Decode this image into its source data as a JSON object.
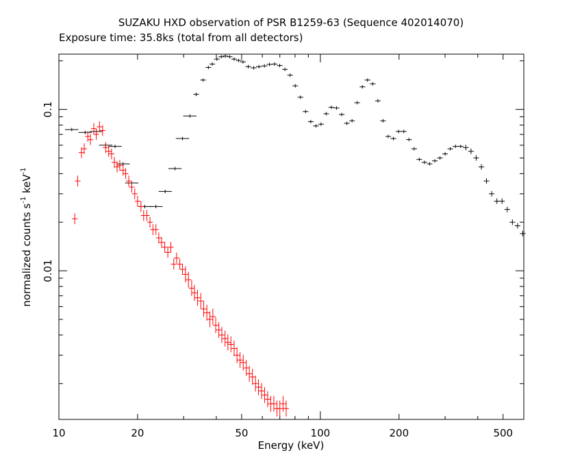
{
  "chart_data": {
    "type": "scatter",
    "title": "SUZAKU HXD observation of PSR B1259-63 (Sequence 402014070)",
    "subtitle": "Exposure time: 35.8ks (total from all detectors)",
    "xlabel": "Energy (keV)",
    "ylabel_main": "normalized counts s",
    "ylabel_mid": " keV",
    "ylabel_exp": "-1",
    "xscale": "log",
    "yscale": "log",
    "xlim": [
      10,
      600
    ],
    "ylim": [
      0.0012,
      0.22
    ],
    "xticks": [
      {
        "value": 10,
        "label": "10"
      },
      {
        "value": 20,
        "label": "20"
      },
      {
        "value": 50,
        "label": "50"
      },
      {
        "value": 100,
        "label": "100"
      },
      {
        "value": 200,
        "label": "200"
      },
      {
        "value": 500,
        "label": "500"
      }
    ],
    "yticks": [
      {
        "value": 0.1,
        "label": "0.1"
      },
      {
        "value": 0.01,
        "label": "0.01"
      }
    ],
    "grid": false,
    "legend": "none",
    "series": [
      {
        "color": "#000000",
        "points": [
          [
            11.2,
            0.075
          ],
          [
            12.6,
            0.072
          ],
          [
            13.9,
            0.073
          ],
          [
            15.1,
            0.06
          ],
          [
            16.4,
            0.059
          ],
          [
            17.6,
            0.046
          ],
          [
            19.0,
            0.035
          ],
          [
            21.3,
            0.025
          ],
          [
            23.5,
            0.025
          ],
          [
            25.5,
            0.031
          ],
          [
            27.8,
            0.043
          ],
          [
            29.7,
            0.066
          ],
          [
            31.7,
            0.091
          ],
          [
            33.5,
            0.124
          ],
          [
            35.6,
            0.152
          ],
          [
            37.3,
            0.182
          ],
          [
            38.6,
            0.191
          ],
          [
            40.2,
            0.205
          ],
          [
            41.8,
            0.212
          ],
          [
            43.3,
            0.214
          ],
          [
            45.0,
            0.212
          ],
          [
            46.8,
            0.205
          ],
          [
            48.7,
            0.201
          ],
          [
            50.6,
            0.197
          ],
          [
            53.0,
            0.184
          ],
          [
            55.6,
            0.181
          ],
          [
            58.2,
            0.184
          ],
          [
            61.1,
            0.186
          ],
          [
            63.9,
            0.19
          ],
          [
            66.8,
            0.191
          ],
          [
            69.9,
            0.187
          ],
          [
            73.2,
            0.177
          ],
          [
            76.6,
            0.163
          ],
          [
            80.2,
            0.14
          ],
          [
            83.9,
            0.119
          ],
          [
            87.8,
            0.097
          ],
          [
            91.9,
            0.084
          ],
          [
            96.2,
            0.079
          ],
          [
            100.6,
            0.081
          ],
          [
            105.3,
            0.094
          ],
          [
            110.2,
            0.103
          ],
          [
            115.3,
            0.102
          ],
          [
            120.7,
            0.093
          ],
          [
            126.3,
            0.082
          ],
          [
            132.2,
            0.085
          ],
          [
            138.3,
            0.11
          ],
          [
            144.8,
            0.138
          ],
          [
            151.5,
            0.152
          ],
          [
            158.6,
            0.144
          ],
          [
            166.0,
            0.113
          ],
          [
            173.7,
            0.085
          ],
          [
            181.8,
            0.068
          ],
          [
            190.3,
            0.066
          ],
          [
            199.2,
            0.073
          ],
          [
            208.5,
            0.073
          ],
          [
            218.2,
            0.065
          ],
          [
            228.4,
            0.057
          ],
          [
            239.0,
            0.049
          ],
          [
            250.1,
            0.047
          ],
          [
            261.8,
            0.046
          ],
          [
            274.0,
            0.048
          ],
          [
            286.8,
            0.05
          ],
          [
            300.1,
            0.053
          ],
          [
            314.1,
            0.057
          ],
          [
            328.8,
            0.059
          ],
          [
            344.1,
            0.059
          ],
          [
            360.1,
            0.058
          ],
          [
            376.9,
            0.055
          ],
          [
            394.5,
            0.05
          ],
          [
            412.9,
            0.044
          ],
          [
            432.1,
            0.036
          ],
          [
            452.2,
            0.03
          ],
          [
            473.3,
            0.027
          ],
          [
            495.4,
            0.027
          ],
          [
            518.5,
            0.024
          ],
          [
            542.6,
            0.02
          ],
          [
            567.9,
            0.019
          ],
          [
            594.4,
            0.017
          ]
        ]
      },
      {
        "color": "#ff0000",
        "points": [
          [
            11.5,
            0.021
          ],
          [
            11.8,
            0.036
          ],
          [
            12.2,
            0.054
          ],
          [
            12.5,
            0.057
          ],
          [
            12.9,
            0.068
          ],
          [
            13.2,
            0.065
          ],
          [
            13.6,
            0.076
          ],
          [
            13.9,
            0.07
          ],
          [
            14.3,
            0.078
          ],
          [
            14.7,
            0.074
          ],
          [
            15.1,
            0.058
          ],
          [
            15.5,
            0.055
          ],
          [
            15.9,
            0.053
          ],
          [
            16.3,
            0.047
          ],
          [
            16.7,
            0.044
          ],
          [
            17.1,
            0.045
          ],
          [
            17.6,
            0.042
          ],
          [
            18.0,
            0.04
          ],
          [
            18.5,
            0.036
          ],
          [
            19.0,
            0.033
          ],
          [
            19.5,
            0.03
          ],
          [
            20.0,
            0.027
          ],
          [
            20.6,
            0.025
          ],
          [
            21.1,
            0.022
          ],
          [
            21.7,
            0.022
          ],
          [
            22.3,
            0.02
          ],
          [
            22.9,
            0.018
          ],
          [
            23.5,
            0.018
          ],
          [
            24.1,
            0.016
          ],
          [
            24.7,
            0.015
          ],
          [
            25.4,
            0.014
          ],
          [
            26.1,
            0.013
          ],
          [
            26.8,
            0.014
          ],
          [
            27.5,
            0.011
          ],
          [
            28.2,
            0.012
          ],
          [
            29.0,
            0.011
          ],
          [
            29.7,
            0.0102
          ],
          [
            30.5,
            0.0095
          ],
          [
            31.3,
            0.0088
          ],
          [
            32.2,
            0.0078
          ],
          [
            33.0,
            0.0073
          ],
          [
            33.9,
            0.0068
          ],
          [
            34.9,
            0.0065
          ],
          [
            35.8,
            0.0058
          ],
          [
            36.8,
            0.0055
          ],
          [
            37.8,
            0.005
          ],
          [
            38.8,
            0.0052
          ],
          [
            39.8,
            0.0046
          ],
          [
            40.9,
            0.0043
          ],
          [
            42.0,
            0.004
          ],
          [
            43.2,
            0.0038
          ],
          [
            44.3,
            0.0036
          ],
          [
            45.5,
            0.0035
          ],
          [
            46.8,
            0.0033
          ],
          [
            48.0,
            0.003
          ],
          [
            49.3,
            0.0028
          ],
          [
            50.7,
            0.0027
          ],
          [
            52.1,
            0.0025
          ],
          [
            53.5,
            0.0023
          ],
          [
            55.0,
            0.0022
          ],
          [
            56.5,
            0.002
          ],
          [
            58.0,
            0.0019
          ],
          [
            59.6,
            0.0018
          ],
          [
            61.2,
            0.0017
          ],
          [
            62.9,
            0.0016
          ],
          [
            64.6,
            0.0015
          ],
          [
            66.4,
            0.0015
          ],
          [
            68.2,
            0.0014
          ],
          [
            70.0,
            0.0014
          ],
          [
            72.0,
            0.0015
          ],
          [
            74.0,
            0.0014
          ]
        ]
      }
    ]
  }
}
